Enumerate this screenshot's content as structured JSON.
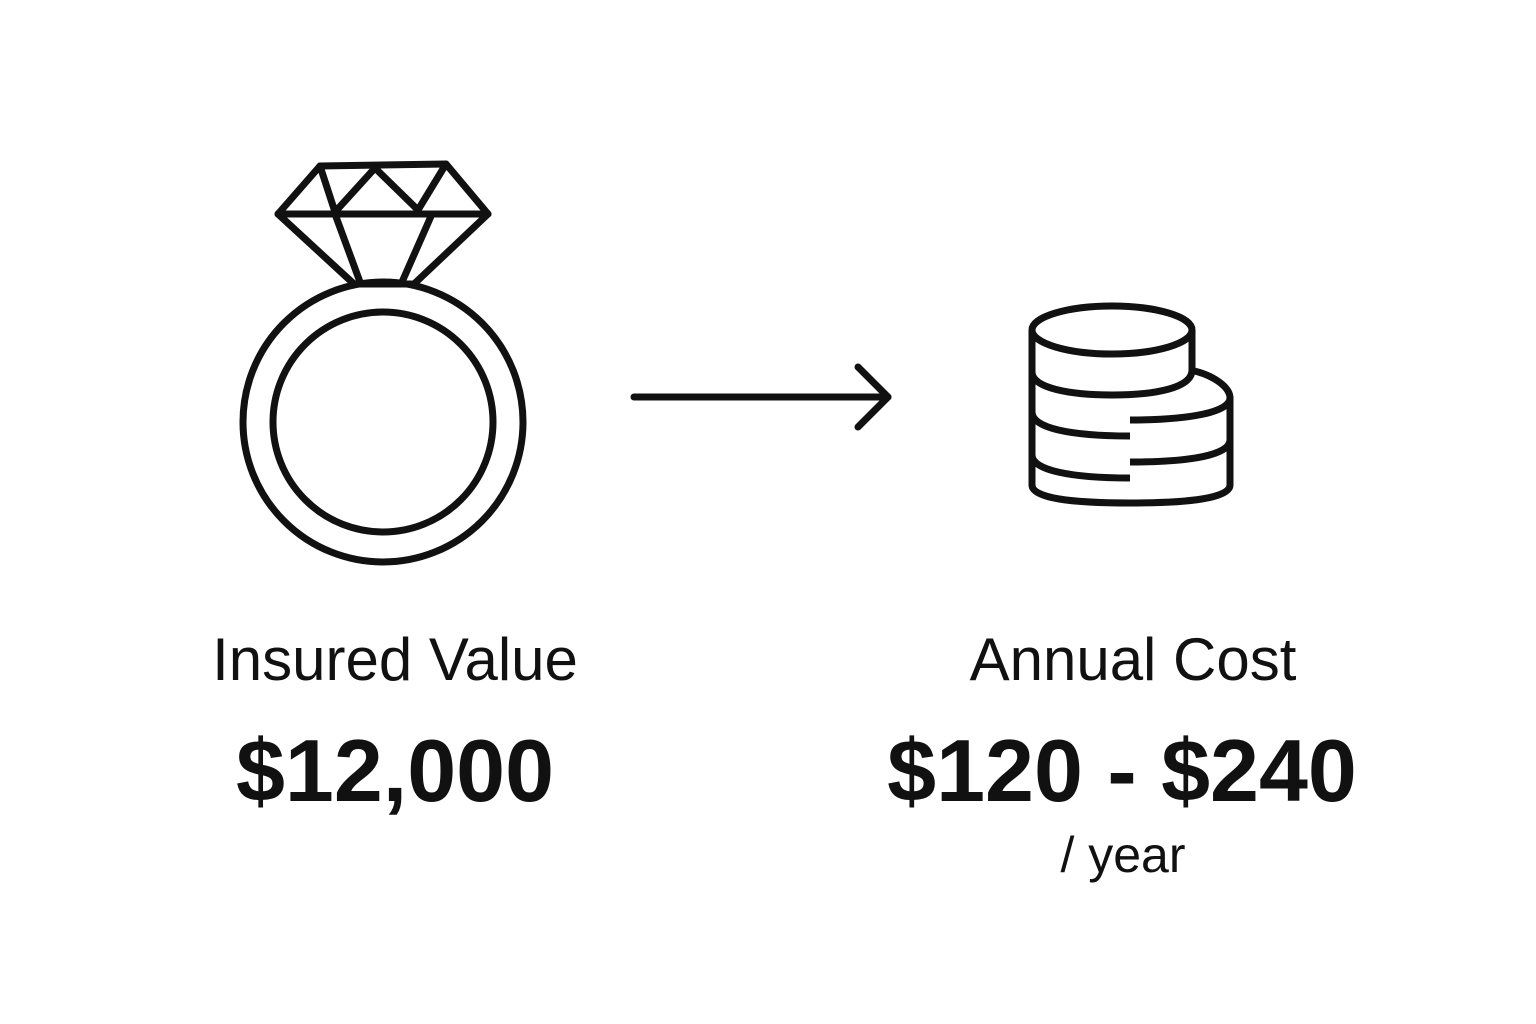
{
  "left": {
    "icon": "diamond-ring-icon",
    "label": "Insured Value",
    "value": "$12,000"
  },
  "connector": {
    "icon": "arrow-right-icon"
  },
  "right": {
    "icon": "coin-stack-icon",
    "label": "Annual Cost",
    "value": "$120 - $240",
    "unit": "/ year"
  },
  "colors": {
    "stroke": "#111111",
    "background": "#ffffff"
  }
}
